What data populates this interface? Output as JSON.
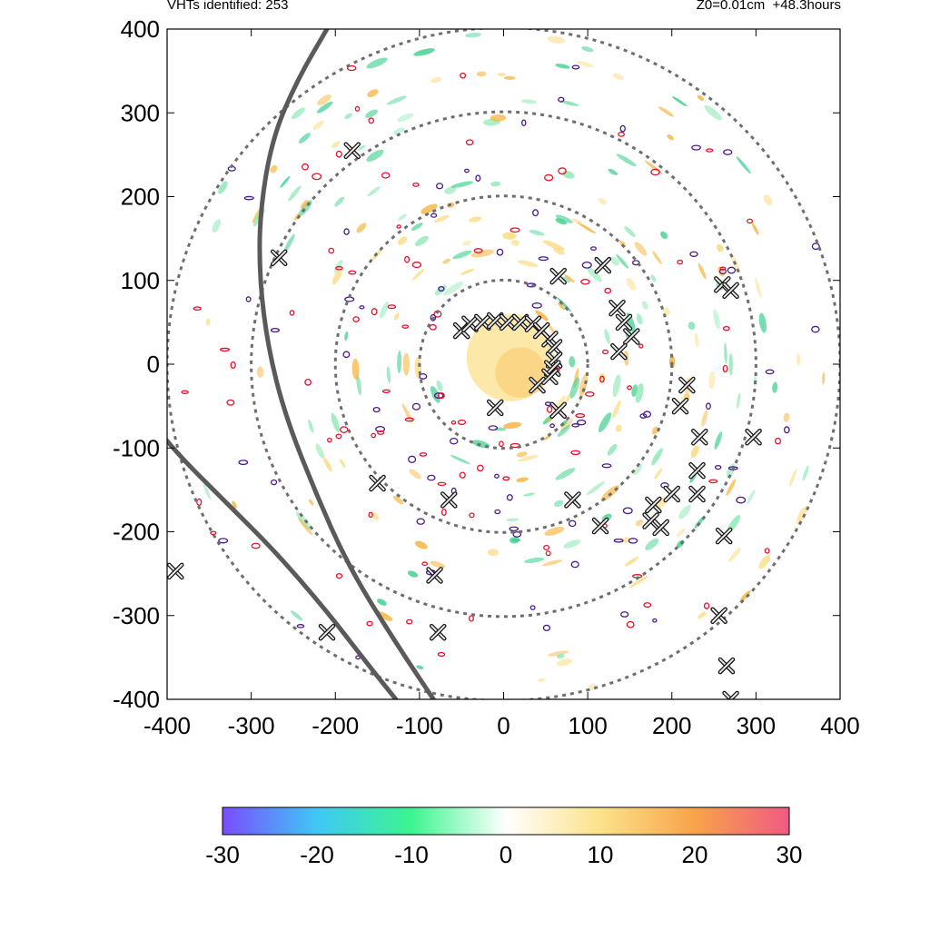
{
  "header": {
    "left": "VHTs identified: 253",
    "right": "Z0=0.01cm  +48.3hours"
  },
  "chart_data": {
    "type": "scatter",
    "title": "",
    "xlabel": "",
    "ylabel": "",
    "xlim": [
      -400,
      400
    ],
    "ylim": [
      -400,
      400
    ],
    "xticks": [
      "-400",
      "-300",
      "-200",
      "-100",
      "0",
      "100",
      "200",
      "300",
      "400"
    ],
    "yticks": [
      "-400",
      "-300",
      "-200",
      "-100",
      "0",
      "100",
      "200",
      "300",
      "400"
    ],
    "range_rings": [
      100,
      200,
      300,
      400
    ],
    "vht_markers": [
      [
        -180,
        255
      ],
      [
        -267,
        127
      ],
      [
        -50,
        40
      ],
      [
        -40,
        48
      ],
      [
        -25,
        50
      ],
      [
        -10,
        52
      ],
      [
        5,
        50
      ],
      [
        20,
        50
      ],
      [
        35,
        48
      ],
      [
        45,
        40
      ],
      [
        55,
        30
      ],
      [
        60,
        20
      ],
      [
        60,
        5
      ],
      [
        58,
        -5
      ],
      [
        55,
        -15
      ],
      [
        40,
        -25
      ],
      [
        65,
        -55
      ],
      [
        -10,
        -52
      ],
      [
        65,
        105
      ],
      [
        118,
        118
      ],
      [
        135,
        67
      ],
      [
        143,
        50
      ],
      [
        152,
        33
      ],
      [
        137,
        15
      ],
      [
        260,
        95
      ],
      [
        270,
        88
      ],
      [
        218,
        -25
      ],
      [
        210,
        -50
      ],
      [
        233,
        -87
      ],
      [
        297,
        -87
      ],
      [
        230,
        -127
      ],
      [
        230,
        -155
      ],
      [
        200,
        -155
      ],
      [
        178,
        -168
      ],
      [
        175,
        -187
      ],
      [
        187,
        -195
      ],
      [
        115,
        -193
      ],
      [
        82,
        -162
      ],
      [
        -65,
        -162
      ],
      [
        -150,
        -142
      ],
      [
        -390,
        -247
      ],
      [
        -82,
        -252
      ],
      [
        -78,
        -320
      ],
      [
        -210,
        -320
      ],
      [
        256,
        -300
      ],
      [
        262,
        -205
      ],
      [
        265,
        -360
      ],
      [
        270,
        -400
      ]
    ],
    "colorbar": {
      "ticks": [
        "-30",
        "-20",
        "-10",
        "0",
        "10",
        "20",
        "30"
      ],
      "range": [
        -30,
        30
      ],
      "colors": [
        "#7a4cff",
        "#3fc8f5",
        "#3cf590",
        "#ffffff",
        "#fbe28a",
        "#f8a34a",
        "#f05a82"
      ]
    },
    "colors": {
      "ring": "#6e6e6e",
      "track": "#5a5a5a",
      "positive": "#f6b23a",
      "negative": "#3ecf8e",
      "contour_red": "#e8102a",
      "contour_purple": "#4a1a8c"
    }
  }
}
